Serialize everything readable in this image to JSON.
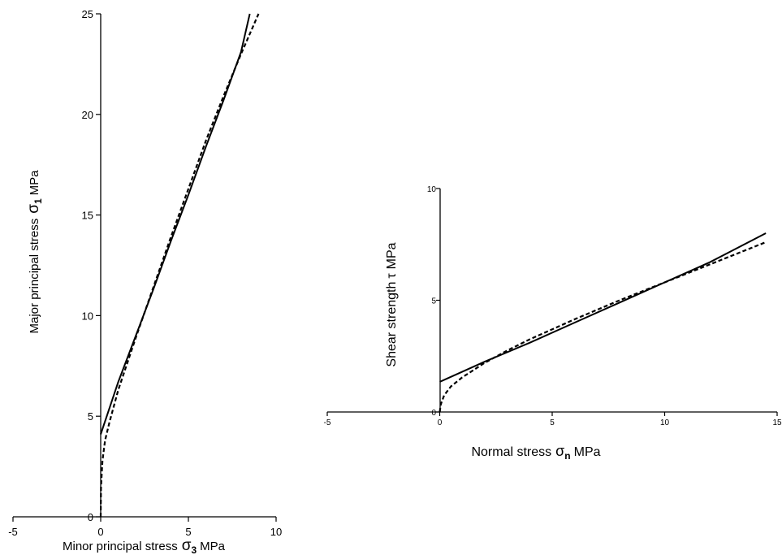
{
  "chart_data": [
    {
      "type": "line",
      "xlabel": "Minor principal stress",
      "xlabel_symbol": "σ",
      "xlabel_subscript": "3",
      "xlabel_unit": "MPa",
      "ylabel": "Major principal stress",
      "ylabel_symbol": "σ",
      "ylabel_subscript": "1",
      "ylabel_unit": "MPa",
      "xlim": [
        -5,
        10
      ],
      "ylim": [
        0,
        25
      ],
      "x_ticks": [
        "-5",
        "0",
        "5",
        "10"
      ],
      "y_ticks": [
        "0",
        "5",
        "10",
        "15",
        "20",
        "25"
      ],
      "grid": false,
      "series": [
        {
          "style": "solid",
          "x": [
            0,
            1,
            2,
            3,
            4,
            5,
            6,
            7,
            8,
            8.5
          ],
          "y": [
            4.1,
            6.7,
            9.0,
            11.3,
            13.7,
            16.0,
            18.4,
            20.7,
            23.1,
            25.0
          ]
        },
        {
          "style": "dashed",
          "x": [
            0,
            0.02,
            0.1,
            0.25,
            0.5,
            1,
            2,
            3,
            4,
            5,
            6,
            7,
            8,
            9
          ],
          "y": [
            0,
            1.5,
            2.8,
            3.8,
            4.7,
            6.3,
            8.9,
            11.4,
            13.9,
            16.3,
            18.7,
            20.9,
            23.0,
            25.0
          ]
        }
      ]
    },
    {
      "type": "line",
      "xlabel": "Normal stress",
      "xlabel_symbol": "σ",
      "xlabel_subscript": "n",
      "xlabel_unit": "MPa",
      "ylabel": "Shear strength",
      "ylabel_symbol": "τ",
      "ylabel_unit": "MPa",
      "xlim": [
        -5,
        15
      ],
      "ylim": [
        0,
        10
      ],
      "x_ticks": [
        "-5",
        "0",
        "5",
        "10",
        "15"
      ],
      "y_ticks": [
        "0",
        "5",
        "10"
      ],
      "grid": false,
      "series": [
        {
          "style": "solid",
          "x": [
            0,
            2,
            4,
            6,
            8,
            10,
            12,
            14.5
          ],
          "y": [
            1.35,
            2.25,
            3.1,
            4.0,
            4.9,
            5.8,
            6.7,
            8.0
          ]
        },
        {
          "style": "dashed",
          "x": [
            0,
            0.05,
            0.2,
            0.5,
            1,
            2,
            3,
            4,
            6,
            8,
            10,
            12,
            14.5
          ],
          "y": [
            0,
            0.35,
            0.75,
            1.15,
            1.55,
            2.2,
            2.75,
            3.25,
            4.15,
            5.0,
            5.8,
            6.6,
            7.6
          ]
        }
      ]
    }
  ]
}
